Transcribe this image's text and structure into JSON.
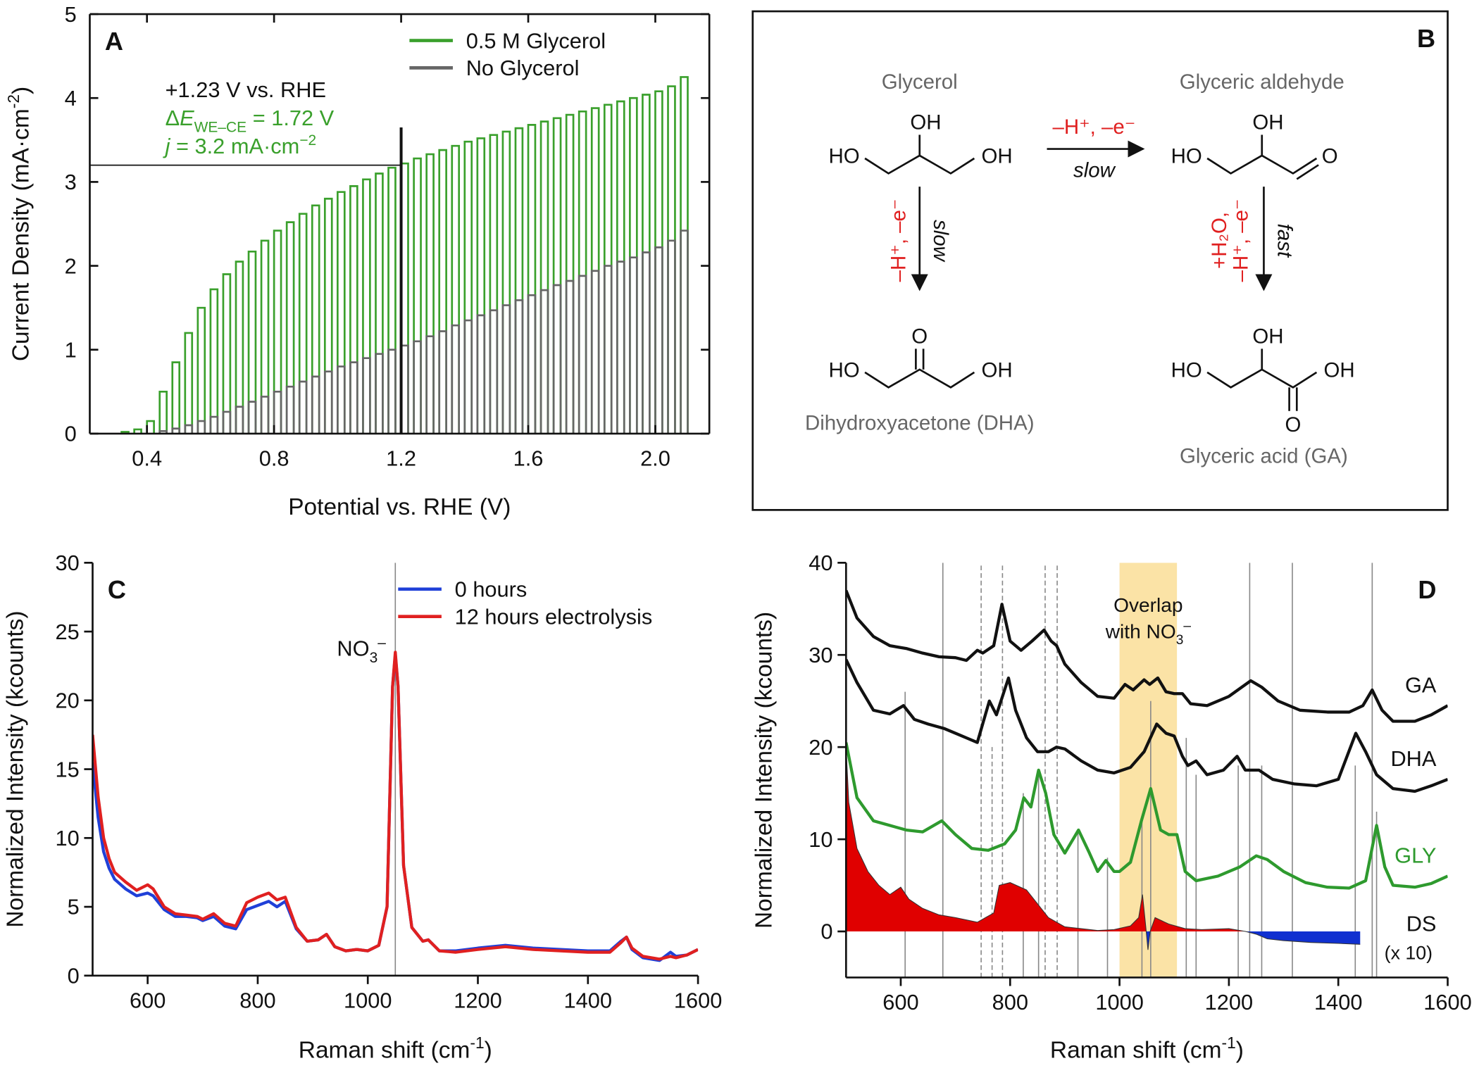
{
  "chart_data": [
    {
      "type": "pulse",
      "panel_label": "A",
      "x_label": [
        {
          "text": "Potential vs. RHE (V)"
        }
      ],
      "y_label": [
        {
          "text": "Current Density (mA·cm"
        },
        {
          "text": "-2",
          "style": "sup"
        },
        {
          "text": ")"
        }
      ],
      "xlim": [
        0.22,
        2.17
      ],
      "xticks": [
        0.4,
        0.8,
        1.2,
        1.6,
        {
          "value": 2,
          "label": "2.0"
        }
      ],
      "ylim": [
        0,
        5
      ],
      "yticks": [
        0,
        1,
        2,
        3,
        4,
        5
      ],
      "legend": "top-right",
      "series": [
        {
          "name": "0.5 M Glycerol",
          "color": "#3aa02c",
          "x": [
            0.32,
            0.36,
            0.4,
            0.44,
            0.48,
            0.52,
            0.56,
            0.6,
            0.64,
            0.68,
            0.72,
            0.76,
            0.8,
            0.84,
            0.88,
            0.92,
            0.96,
            1,
            1.04,
            1.08,
            1.12,
            1.16,
            1.2,
            1.24,
            1.28,
            1.32,
            1.36,
            1.4,
            1.44,
            1.48,
            1.52,
            1.56,
            1.6,
            1.64,
            1.68,
            1.72,
            1.76,
            1.8,
            1.84,
            1.88,
            1.92,
            1.96,
            2,
            2.04,
            2.08
          ],
          "values": [
            0.02,
            0.05,
            0.15,
            0.5,
            0.85,
            1.2,
            1.5,
            1.72,
            1.9,
            2.05,
            2.17,
            2.3,
            2.42,
            2.52,
            2.62,
            2.72,
            2.8,
            2.88,
            2.95,
            3.03,
            3.1,
            3.17,
            3.22,
            3.28,
            3.33,
            3.38,
            3.43,
            3.48,
            3.52,
            3.56,
            3.6,
            3.64,
            3.68,
            3.72,
            3.76,
            3.8,
            3.84,
            3.88,
            3.92,
            3.96,
            4,
            4.04,
            4.08,
            4.14,
            4.25
          ]
        },
        {
          "name": "No Glycerol",
          "color": "#666666",
          "x": [
            0.44,
            0.48,
            0.52,
            0.56,
            0.6,
            0.64,
            0.68,
            0.72,
            0.76,
            0.8,
            0.84,
            0.88,
            0.92,
            0.96,
            1,
            1.04,
            1.08,
            1.12,
            1.16,
            1.2,
            1.24,
            1.28,
            1.32,
            1.36,
            1.4,
            1.44,
            1.48,
            1.52,
            1.56,
            1.6,
            1.64,
            1.68,
            1.72,
            1.76,
            1.8,
            1.84,
            1.88,
            1.92,
            1.96,
            2,
            2.04,
            2.08
          ],
          "values": [
            0.03,
            0.06,
            0.1,
            0.15,
            0.2,
            0.26,
            0.32,
            0.38,
            0.44,
            0.5,
            0.56,
            0.62,
            0.68,
            0.74,
            0.8,
            0.85,
            0.9,
            0.95,
            1,
            1.05,
            1.1,
            1.16,
            1.22,
            1.29,
            1.35,
            1.41,
            1.47,
            1.53,
            1.59,
            1.65,
            1.71,
            1.77,
            1.82,
            1.88,
            1.94,
            2,
            2.05,
            2.1,
            2.16,
            2.22,
            2.3,
            2.42
          ]
        }
      ],
      "annotation_lines": [
        {
          "color": "#111111",
          "parts": [
            {
              "text": "+1.23 V vs. RHE"
            }
          ]
        },
        {
          "color": "#3aa02c",
          "parts": [
            {
              "text": "Δ"
            },
            {
              "text": "E",
              "style": "italic"
            },
            {
              "text": "WE–CE",
              "style": "sub"
            },
            {
              "text": " = 1.72 V"
            }
          ]
        },
        {
          "color": "#3aa02c",
          "parts": [
            {
              "text": "j",
              "style": "italic"
            },
            {
              "text": " = 3.2 mA·cm"
            },
            {
              "text": "−2",
              "style": "sup"
            }
          ]
        }
      ],
      "marker": {
        "x": 1.2,
        "y": 3.2,
        "top": 3.65
      }
    },
    {
      "type": "line",
      "panel_label": "C",
      "x_label": [
        {
          "text": "Raman shift (cm"
        },
        {
          "text": "-1",
          "style": "sup"
        },
        {
          "text": ")"
        }
      ],
      "y_label": [
        {
          "text": "Normalized Intensity (kcounts)"
        }
      ],
      "xlim": [
        500,
        1600
      ],
      "xticks": [
        600,
        800,
        1000,
        1200,
        1400,
        1600
      ],
      "ylim": [
        0,
        30
      ],
      "yticks": [
        0,
        5,
        10,
        15,
        20,
        25,
        30
      ],
      "legend": "top-right",
      "vlines": [
        {
          "x": 1050,
          "style": "solid"
        }
      ],
      "annotation": {
        "x": 1050,
        "y": 23.5,
        "parts": [
          {
            "text": "NO"
          },
          {
            "text": "3",
            "style": "sub"
          },
          {
            "text": "–",
            "style": "sup"
          }
        ]
      },
      "x": [
        500,
        510,
        520,
        530,
        540,
        560,
        580,
        600,
        610,
        630,
        650,
        670,
        690,
        700,
        720,
        740,
        760,
        780,
        800,
        820,
        835,
        850,
        870,
        890,
        910,
        925,
        940,
        960,
        980,
        1000,
        1020,
        1035,
        1045,
        1050,
        1055,
        1065,
        1080,
        1100,
        1110,
        1130,
        1160,
        1200,
        1250,
        1300,
        1350,
        1400,
        1440,
        1460,
        1470,
        1480,
        1500,
        1530,
        1550,
        1560,
        1580,
        1600
      ],
      "series": [
        {
          "name": "0 hours",
          "color": "#2040d8",
          "values": [
            15.5,
            11.5,
            9,
            7.8,
            7,
            6.3,
            5.8,
            6.0,
            5.8,
            4.8,
            4.3,
            4.3,
            4.2,
            4.0,
            4.3,
            3.6,
            3.4,
            4.8,
            5.1,
            5.4,
            5.0,
            5.4,
            3.4,
            2.5,
            2.6,
            3.0,
            2.1,
            1.8,
            1.9,
            1.8,
            2.2,
            5,
            21,
            23.3,
            21,
            8,
            3.5,
            2.5,
            2.6,
            1.8,
            1.8,
            2.0,
            2.2,
            2.0,
            1.9,
            1.8,
            1.8,
            2.5,
            2.8,
            1.9,
            1.3,
            1.1,
            1.7,
            1.4,
            1.5,
            1.9
          ]
        },
        {
          "name": "12 hours electrolysis",
          "color": "#e02020",
          "values": [
            17.5,
            13,
            10,
            8.5,
            7.5,
            6.8,
            6.2,
            6.6,
            6.3,
            5,
            4.5,
            4.4,
            4.3,
            4.1,
            4.5,
            3.8,
            3.6,
            5.3,
            5.7,
            6.0,
            5.5,
            5.7,
            3.5,
            2.5,
            2.6,
            3.0,
            2.1,
            1.8,
            1.9,
            1.8,
            2.2,
            5,
            21,
            23.5,
            21,
            8,
            3.5,
            2.5,
            2.6,
            1.8,
            1.7,
            1.9,
            2.1,
            1.9,
            1.8,
            1.7,
            1.7,
            2.4,
            2.8,
            2.0,
            1.4,
            1.2,
            1.4,
            1.3,
            1.5,
            1.9
          ]
        }
      ]
    },
    {
      "type": "line",
      "panel_label": "D",
      "x_label": [
        {
          "text": "Raman shift (cm"
        },
        {
          "text": "-1",
          "style": "sup"
        },
        {
          "text": ")"
        }
      ],
      "y_label": [
        {
          "text": "Normalized Intensity (kcounts)"
        }
      ],
      "xlim": [
        500,
        1600
      ],
      "xticks": [
        600,
        800,
        1000,
        1200,
        1400,
        1600
      ],
      "ylim": [
        -5,
        40
      ],
      "yticks": [
        0,
        10,
        20,
        30,
        40
      ],
      "legend": "line-end",
      "highlight": {
        "from": 1000,
        "to": 1105,
        "color": "#fbe3a6",
        "label": [
          [
            {
              "text": "Overlap"
            }
          ],
          [
            {
              "text": "with NO"
            },
            {
              "text": "3",
              "style": "sub"
            },
            {
              "text": "–",
              "style": "sup"
            }
          ]
        ]
      },
      "vlines": [
        {
          "x": 608,
          "top": 26,
          "style": "solid"
        },
        {
          "x": 677,
          "style": "solid"
        },
        {
          "x": 747,
          "style": "dashed"
        },
        {
          "x": 767,
          "top": 20,
          "style": "dashed"
        },
        {
          "x": 786,
          "style": "dashed"
        },
        {
          "x": 824,
          "top": 15,
          "style": "solid"
        },
        {
          "x": 852,
          "top": 17,
          "style": "solid"
        },
        {
          "x": 864,
          "style": "dashed"
        },
        {
          "x": 886,
          "style": "dashed"
        },
        {
          "x": 924,
          "top": 11,
          "style": "solid"
        },
        {
          "x": 978,
          "top": 8,
          "style": "solid"
        },
        {
          "x": 1041,
          "top": 12,
          "style": "solid"
        },
        {
          "x": 1057,
          "top": 25,
          "style": "solid"
        },
        {
          "x": 1122,
          "top": 21,
          "style": "solid"
        },
        {
          "x": 1140,
          "top": 17,
          "style": "solid"
        },
        {
          "x": 1217,
          "top": 18,
          "style": "solid"
        },
        {
          "x": 1238,
          "style": "solid"
        },
        {
          "x": 1260,
          "top": 18,
          "style": "solid"
        },
        {
          "x": 1316,
          "style": "solid"
        },
        {
          "x": 1431,
          "top": 18,
          "style": "solid"
        },
        {
          "x": 1462,
          "style": "solid"
        },
        {
          "x": 1470,
          "top": 13,
          "style": "solid"
        }
      ],
      "series": [
        {
          "name": "GA",
          "color": "#111111",
          "x": [
            500,
            520,
            550,
            580,
            610,
            640,
            670,
            700,
            720,
            740,
            750,
            770,
            785,
            800,
            820,
            840,
            862,
            875,
            885,
            900,
            930,
            960,
            990,
            1010,
            1025,
            1045,
            1055,
            1070,
            1085,
            1100,
            1115,
            1130,
            1160,
            1200,
            1240,
            1260,
            1290,
            1330,
            1380,
            1420,
            1445,
            1462,
            1480,
            1500,
            1540,
            1570,
            1600
          ],
          "values": [
            37,
            34,
            32,
            31,
            30.7,
            30.2,
            29.8,
            29.7,
            29.4,
            30.5,
            30.2,
            31,
            35.5,
            31.5,
            30.5,
            31.5,
            32.7,
            31.5,
            31,
            29,
            27,
            25.5,
            25.3,
            26.8,
            26.2,
            27.3,
            26.8,
            27.5,
            26,
            25.8,
            25.8,
            24.7,
            24.5,
            25.5,
            27.2,
            26.5,
            25,
            24,
            23.8,
            23.8,
            24.5,
            26.2,
            24,
            22.8,
            22.8,
            23.5,
            24.5
          ]
        },
        {
          "name": "DHA",
          "color": "#111111",
          "x": [
            500,
            520,
            550,
            580,
            605,
            625,
            650,
            680,
            700,
            720,
            740,
            762,
            775,
            797,
            810,
            830,
            850,
            870,
            885,
            900,
            930,
            960,
            990,
            1020,
            1045,
            1068,
            1085,
            1100,
            1115,
            1125,
            1140,
            1160,
            1190,
            1215,
            1230,
            1255,
            1280,
            1320,
            1360,
            1400,
            1432,
            1450,
            1470,
            1500,
            1540,
            1570,
            1600
          ],
          "values": [
            29.5,
            27,
            24,
            23.6,
            24.5,
            23,
            22.5,
            22,
            21.5,
            21,
            20.5,
            25,
            23.5,
            27.5,
            24,
            21,
            19.5,
            19.5,
            20,
            19.8,
            18.5,
            17.5,
            17.2,
            17.8,
            19.5,
            22.5,
            21.5,
            21.2,
            19,
            18,
            18.5,
            17,
            17.5,
            19,
            17.5,
            17.5,
            16.5,
            16,
            15.8,
            16.5,
            21.5,
            19.5,
            17,
            15.5,
            15.2,
            15.8,
            16.5
          ]
        },
        {
          "name": "GLY",
          "color": "#2e9a2e",
          "x": [
            500,
            520,
            550,
            580,
            610,
            640,
            675,
            700,
            730,
            760,
            790,
            810,
            825,
            838,
            852,
            865,
            880,
            900,
            925,
            945,
            960,
            975,
            990,
            1000,
            1020,
            1040,
            1057,
            1075,
            1090,
            1105,
            1120,
            1140,
            1180,
            1220,
            1250,
            1270,
            1300,
            1340,
            1380,
            1420,
            1450,
            1470,
            1485,
            1500,
            1540,
            1570,
            1600
          ],
          "values": [
            20.5,
            14.5,
            12,
            11.5,
            11,
            10.8,
            12,
            10.5,
            9,
            8.8,
            9.5,
            11,
            14.5,
            13.5,
            17.5,
            15,
            10.5,
            8.5,
            11,
            8.5,
            6.5,
            7.7,
            6.5,
            6.5,
            7.5,
            12,
            15.5,
            11,
            10.5,
            10.5,
            6.5,
            5.5,
            6,
            7,
            8.2,
            7.8,
            6.5,
            5.3,
            4.8,
            4.7,
            5.5,
            11.5,
            7,
            5,
            4.8,
            5.2,
            6
          ]
        },
        {
          "name": "DS",
          "note": "(x 10)",
          "color": "#e00000",
          "negative_color": "#1030d0",
          "fill": true,
          "x": [
            500,
            505,
            520,
            540,
            560,
            580,
            600,
            615,
            640,
            670,
            700,
            740,
            770,
            780,
            800,
            830,
            850,
            870,
            900,
            930,
            960,
            990,
            1020,
            1035,
            1042,
            1048,
            1052,
            1056,
            1065,
            1090,
            1120,
            1150,
            1200,
            1230,
            1250,
            1270,
            1300,
            1350,
            1400,
            1440
          ],
          "values": [
            20,
            14,
            9,
            6.5,
            5,
            4,
            4.8,
            3.5,
            2.5,
            1.8,
            1.5,
            1.0,
            2,
            5,
            5.3,
            4.5,
            3.0,
            1.5,
            0.5,
            0.3,
            0.1,
            0.2,
            0.6,
            1.5,
            4,
            0.5,
            -2,
            0,
            1.5,
            0.8,
            0.3,
            0.2,
            0.3,
            0,
            -0.3,
            -0.8,
            -1.0,
            -1.2,
            -1.3,
            -1.4
          ]
        }
      ]
    }
  ],
  "scheme": {
    "panel_label": "B",
    "molecules": [
      {
        "name": "Glycerol",
        "atoms": [
          "HO",
          "OH",
          "OH"
        ]
      },
      {
        "name": "Glyceric aldehyde",
        "atoms": [
          "HO",
          "OH",
          "O"
        ]
      },
      {
        "name": "Dihydroxyacetone (DHA)",
        "atoms": [
          "HO",
          "O",
          "OH"
        ]
      },
      {
        "name": "Glyceric acid (GA)",
        "atoms": [
          "HO",
          "OH",
          "OH",
          "O"
        ]
      }
    ],
    "steps": [
      {
        "reagents": [
          "–H⁺, –e⁻"
        ],
        "rate": "slow"
      },
      {
        "reagents": [
          "–H⁺, –e⁻"
        ],
        "rate": "slow"
      },
      {
        "reagents": [
          "+H₂O,",
          "–H⁺, –e⁻"
        ],
        "rate": "fast"
      }
    ]
  }
}
